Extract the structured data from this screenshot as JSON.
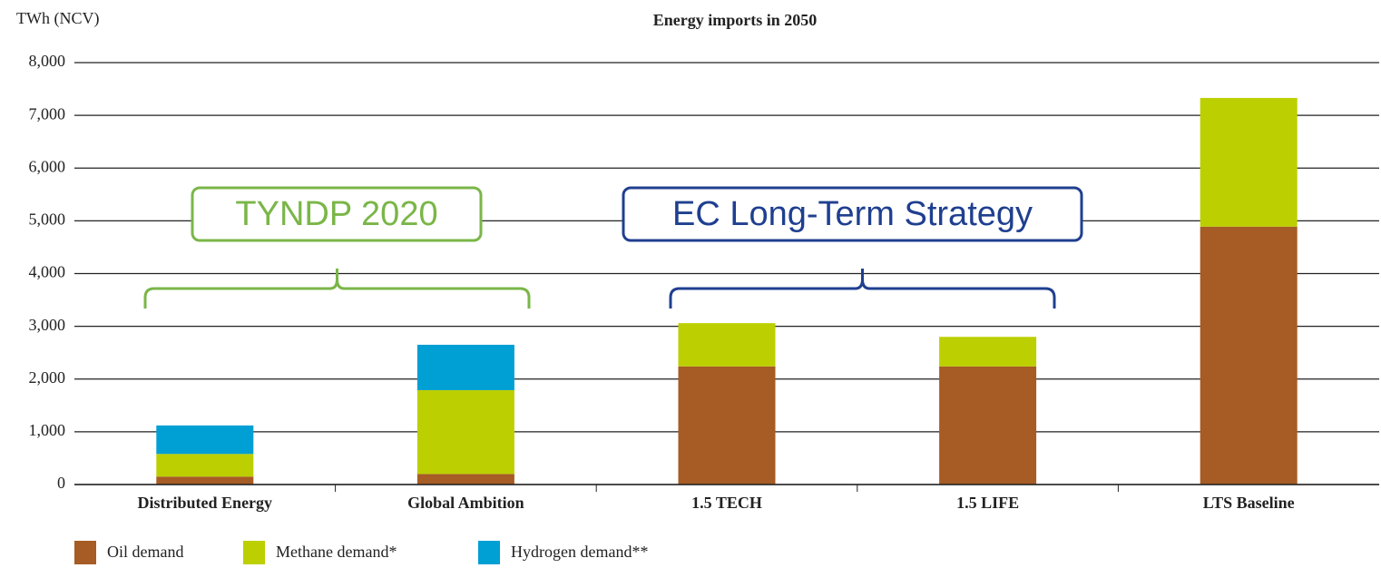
{
  "chart_data": {
    "type": "stacked_bar",
    "title": "Energy imports in 2050",
    "y_label": "TWh (NCV)",
    "categories": [
      "Distributed Energy",
      "Global Ambition",
      "1.5 TECH",
      "1.5 LIFE",
      "LTS Baseline"
    ],
    "series": [
      {
        "name": "Oil demand",
        "color": "#a65c24",
        "values": [
          150,
          200,
          2240,
          2240,
          4890
        ]
      },
      {
        "name": "Methane demand*",
        "color": "#bccf00",
        "values": [
          430,
          1590,
          820,
          560,
          2440
        ]
      },
      {
        "name": "Hydrogen demand**",
        "color": "#009fd4",
        "values": [
          540,
          860,
          0,
          0,
          0
        ]
      }
    ],
    "ylim": [
      0,
      8000
    ],
    "yticks": [
      0,
      {
        "value": 1000,
        "label": "1,000"
      },
      {
        "value": 2000,
        "label": "2,000"
      },
      {
        "value": 3000,
        "label": "3,000"
      },
      {
        "value": 4000,
        "label": "4,000"
      },
      {
        "value": 5000,
        "label": "5,000"
      },
      {
        "value": 6000,
        "label": "6,000"
      },
      {
        "value": 7000,
        "label": "7,000"
      },
      {
        "value": 8000,
        "label": "8,000"
      }
    ],
    "grid": true,
    "legend": "bottom-left",
    "annotations": [
      {
        "text": "TYNDP 2020",
        "color": "#7ab648"
      },
      {
        "text": "EC Long-Term Strategy",
        "color": "#1f3f8f"
      }
    ]
  }
}
